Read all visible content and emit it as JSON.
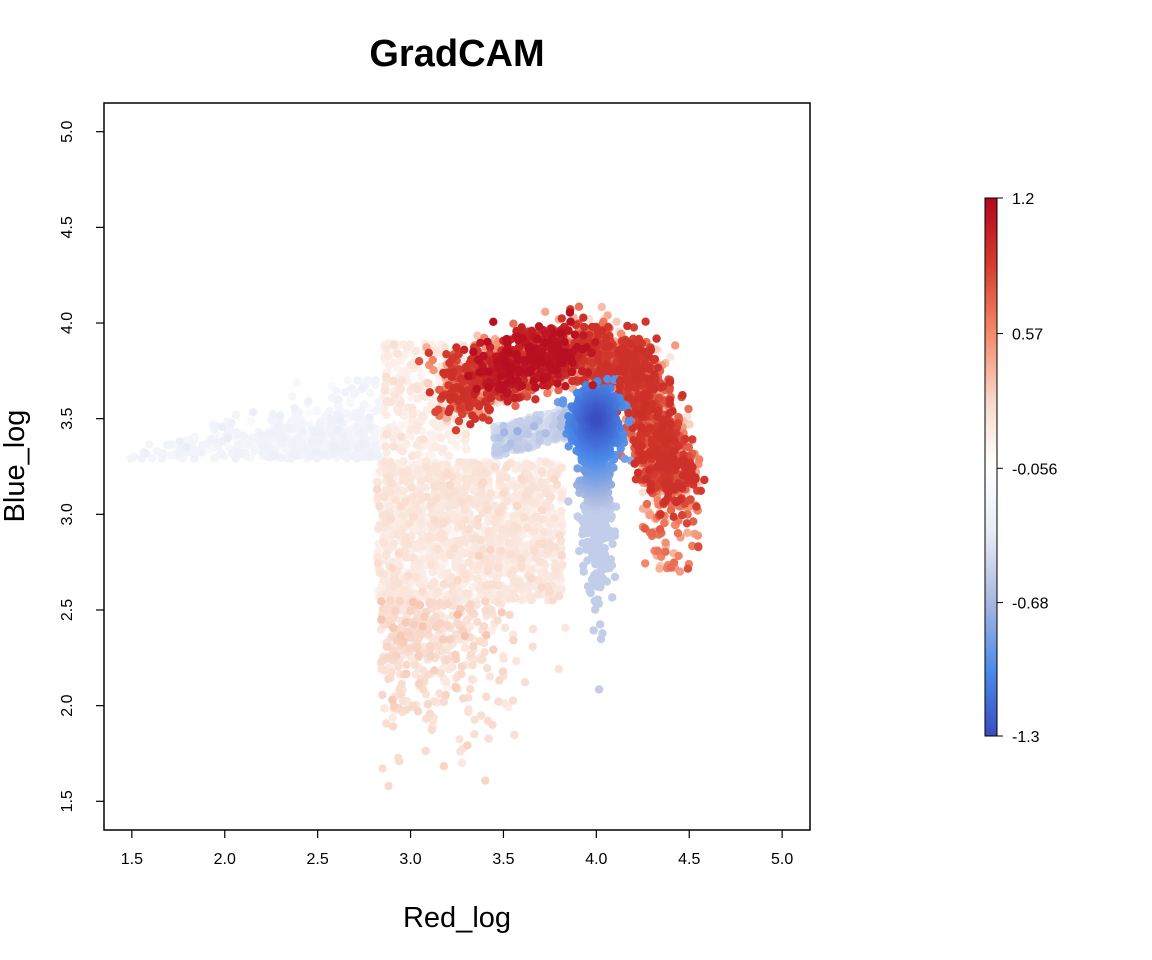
{
  "chart_data": {
    "type": "scatter",
    "title": "GradCAM",
    "xlabel": "Red_log",
    "ylabel": "Blue_log",
    "xlim": [
      1.35,
      5.15
    ],
    "ylim": [
      1.35,
      5.15
    ],
    "x_ticks": [
      "1.5",
      "2.0",
      "2.5",
      "3.0",
      "3.5",
      "4.0",
      "4.5",
      "5.0"
    ],
    "y_ticks": [
      "1.5",
      "2.0",
      "2.5",
      "3.0",
      "3.5",
      "4.0",
      "4.5",
      "5.0"
    ],
    "grid": false,
    "color_scale": {
      "min": -1.3,
      "max": 1.2,
      "labels": [
        "1.2",
        "0.57",
        "-0.056",
        "-0.68",
        "-1.3"
      ],
      "colors": [
        "#3a4cc0",
        "#4a8ae8",
        "#a9b8e0",
        "#e8ecf6",
        "#ffffff",
        "#f8d9cb",
        "#f4896a",
        "#d43a2c",
        "#b2061f"
      ]
    },
    "clusters": [
      {
        "x": 2.1,
        "y": 3.35,
        "value": -0.2
      },
      {
        "x": 2.6,
        "y": 3.45,
        "value": -0.22
      },
      {
        "x": 3.3,
        "y": 2.95,
        "value": 0.15
      },
      {
        "x": 3.2,
        "y": 2.2,
        "value": 0.2
      },
      {
        "x": 3.65,
        "y": 3.8,
        "value": 1.1
      },
      {
        "x": 4.0,
        "y": 3.85,
        "value": 0.95
      },
      {
        "x": 4.3,
        "y": 3.7,
        "value": 0.9
      },
      {
        "x": 4.3,
        "y": 3.2,
        "value": 0.55
      },
      {
        "x": 4.0,
        "y": 3.5,
        "value": -1.3
      },
      {
        "x": 4.0,
        "y": 3.0,
        "value": -0.8
      },
      {
        "x": 3.8,
        "y": 3.38,
        "value": -0.5
      }
    ]
  }
}
